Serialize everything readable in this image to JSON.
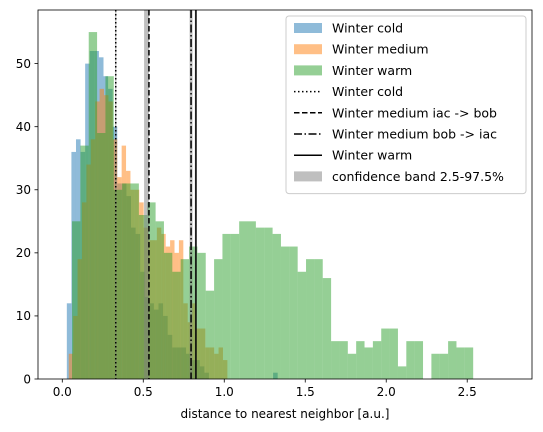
{
  "chart_data": {
    "type": "histogram",
    "xlabel": "distance to nearest neighbor [a.u.]",
    "ylabel": "",
    "xlim": [
      -0.15,
      2.9
    ],
    "ylim": [
      0,
      58.5
    ],
    "xticks": [
      0.0,
      0.5,
      1.0,
      1.5,
      2.0,
      2.5
    ],
    "xtick_labels": [
      "0.0",
      "0.5",
      "1.0",
      "1.5",
      "2.0",
      "2.5"
    ],
    "yticks": [
      0,
      10,
      20,
      30,
      40,
      50
    ],
    "ytick_labels": [
      "0",
      "10",
      "20",
      "30",
      "40",
      "50"
    ],
    "grid": false,
    "legend_position": "top-right",
    "series": [
      {
        "name": "Winter cold",
        "color": "#1f77b4",
        "alpha": 0.5,
        "bin_start": 0.028,
        "bin_width": 0.0283,
        "counts": [
          12,
          36,
          38,
          36,
          50,
          52,
          52,
          51,
          48,
          46,
          40,
          31,
          31,
          29,
          24,
          23,
          17,
          13,
          12,
          11,
          12,
          10,
          7,
          5,
          5,
          5,
          4,
          3,
          3,
          2,
          1,
          0,
          0,
          0,
          0,
          0,
          0,
          0,
          0,
          0,
          0,
          0,
          0,
          0,
          0,
          1
        ]
      },
      {
        "name": "Winter medium",
        "color": "#ff7f0e",
        "alpha": 0.5,
        "bin_start": 0.04,
        "bin_width": 0.0272,
        "counts": [
          4,
          10,
          19,
          28,
          34,
          38,
          44,
          46,
          45,
          44,
          38,
          32,
          37,
          33,
          30,
          30,
          28,
          24,
          22,
          22,
          24,
          23,
          21,
          22,
          20,
          22,
          12,
          9,
          12,
          8,
          8,
          5,
          5,
          4,
          5,
          3
        ]
      },
      {
        "name": "Winter warm",
        "color": "#2ca02c",
        "alpha": 0.5,
        "bin_start": 0.06,
        "bin_width": 0.0516,
        "counts": [
          25,
          37,
          55,
          39,
          48,
          30,
          31,
          31,
          26,
          28,
          25,
          20,
          17,
          19,
          21,
          20,
          14,
          19,
          23,
          23,
          25,
          25,
          24,
          24,
          23,
          21,
          21,
          17,
          19,
          19,
          16,
          6,
          6,
          4,
          6,
          5,
          6,
          8,
          8,
          2,
          6,
          6,
          0,
          4,
          4,
          6,
          5,
          5
        ]
      }
    ],
    "vlines": [
      {
        "name": "Winter cold",
        "x": 0.33,
        "style": "dotted",
        "color": "#000000"
      },
      {
        "name": "Winter medium iac -> bob",
        "x": 0.535,
        "style": "dashed",
        "color": "#000000"
      },
      {
        "name": "Winter medium bob -> iac",
        "x": 0.795,
        "style": "dashdot",
        "color": "#000000"
      },
      {
        "name": "Winter warm",
        "x": 0.825,
        "style": "solid",
        "color": "#000000"
      }
    ],
    "bands": [
      {
        "name": "confidence band 2.5-97.5%",
        "x0": 0.505,
        "x1": 0.535,
        "color": "#808080",
        "alpha": 0.5
      },
      {
        "name": "",
        "x0": 0.786,
        "x1": 0.804,
        "color": "#808080",
        "alpha": 0.5
      },
      {
        "name": "",
        "x0": 0.818,
        "x1": 0.83,
        "color": "#808080",
        "alpha": 0.5
      },
      {
        "name": "",
        "x0": 0.326,
        "x1": 0.334,
        "color": "#808080",
        "alpha": 0.5
      }
    ],
    "legend_entries": [
      {
        "label": "Winter cold",
        "kind": "patch",
        "color": "#1f77b4",
        "alpha": 0.5
      },
      {
        "label": "Winter medium",
        "kind": "patch",
        "color": "#ff7f0e",
        "alpha": 0.5
      },
      {
        "label": "Winter warm",
        "kind": "patch",
        "color": "#2ca02c",
        "alpha": 0.5
      },
      {
        "label": "Winter cold",
        "kind": "line",
        "style": "dotted"
      },
      {
        "label": "Winter medium iac -> bob",
        "kind": "line",
        "style": "dashed"
      },
      {
        "label": "Winter medium bob -> iac",
        "kind": "line",
        "style": "dashdot"
      },
      {
        "label": "Winter warm",
        "kind": "line",
        "style": "solid"
      },
      {
        "label": "confidence band 2.5-97.5%",
        "kind": "patch",
        "color": "#808080",
        "alpha": 0.5
      }
    ]
  }
}
